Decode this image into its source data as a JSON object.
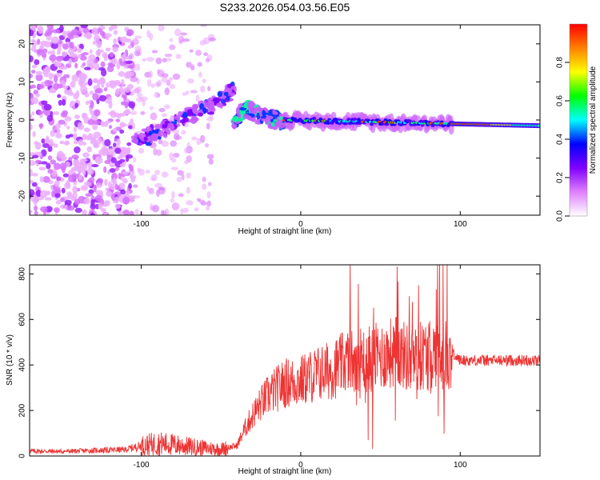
{
  "title": "S233.2026.054.03.56.E05",
  "chart_data": [
    {
      "type": "heatmap",
      "name": "spectrogram",
      "xlabel": "Height of straight line (km)",
      "ylabel": "Frequency (Hz)",
      "xlim": [
        -170,
        150
      ],
      "ylim": [
        -25,
        25
      ],
      "xticks": [
        -100,
        0,
        100
      ],
      "yticks": [
        20,
        10,
        0,
        -10,
        -20
      ],
      "colorbar": {
        "label": "Normalized spectral amplitude",
        "range": [
          0,
          1
        ],
        "ticks": [
          "0.0",
          "0.2",
          "0.4",
          "0.6",
          "0.8"
        ],
        "colors": [
          "#ffffff",
          "#e080ff",
          "#8000ff",
          "#0000ff",
          "#00ffff",
          "#00ff00",
          "#ffff00",
          "#ff8000",
          "#ff0000"
        ]
      },
      "features": [
        {
          "segment": "noise",
          "x_range": [
            -170,
            -105
          ],
          "freq_range": [
            -25,
            25
          ],
          "amplitude": [
            0.05,
            0.2
          ]
        },
        {
          "segment": "noise-sparse",
          "x_range": [
            -105,
            -55
          ],
          "freq_range": [
            -25,
            25
          ],
          "amplitude": [
            0.03,
            0.1
          ]
        },
        {
          "segment": "rising-track",
          "x": [
            -105,
            -95,
            -85,
            -75,
            -65,
            -55,
            -48,
            -42
          ],
          "freq": [
            -6,
            -4,
            -2,
            0,
            2,
            4,
            6,
            8
          ],
          "amplitude": 0.25
        },
        {
          "segment": "settling-track",
          "x": [
            -42,
            -35,
            -25,
            -15,
            -10
          ],
          "freq": [
            -1,
            3,
            1,
            0,
            -1
          ],
          "amplitude": 0.4
        },
        {
          "segment": "stable-track",
          "x": [
            -10,
            95
          ],
          "freq": [
            0,
            -1
          ],
          "amplitude": 0.55
        },
        {
          "segment": "strong-tail",
          "x": [
            95,
            150
          ],
          "freq": [
            -1,
            -1.5
          ],
          "amplitude": 0.85
        }
      ]
    },
    {
      "type": "line",
      "name": "snr",
      "xlabel": "Height of straight line (km)",
      "ylabel": "SNR (10 * v/v)",
      "xlim": [
        -170,
        150
      ],
      "ylim": [
        0,
        840
      ],
      "xticks": [
        -100,
        0,
        100
      ],
      "yticks": [
        0,
        200,
        400,
        600,
        800
      ],
      "color": "#ee3333",
      "x": [
        -170,
        -150,
        -130,
        -110,
        -100,
        -90,
        -80,
        -70,
        -60,
        -50,
        -40,
        -35,
        -30,
        -25,
        -20,
        -10,
        0,
        10,
        20,
        25,
        30,
        35,
        40,
        50,
        60,
        70,
        80,
        85,
        90,
        95,
        100,
        110,
        120,
        130,
        140,
        150
      ],
      "y": [
        22,
        20,
        24,
        28,
        45,
        55,
        50,
        42,
        35,
        30,
        45,
        120,
        180,
        230,
        270,
        320,
        330,
        360,
        380,
        400,
        420,
        440,
        420,
        440,
        460,
        420,
        450,
        460,
        440,
        450,
        420,
        420,
        420,
        420,
        420,
        420
      ]
    }
  ]
}
